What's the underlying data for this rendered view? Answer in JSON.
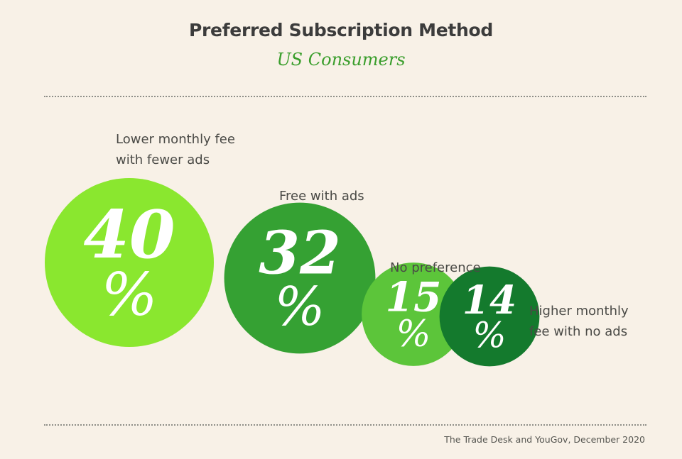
{
  "chart_data": {
    "type": "bubble",
    "title": "Preferred Subscription Method",
    "subtitle": "US Consumers",
    "unit": "%",
    "series": [
      {
        "label": "Lower monthly fee\nwith fewer ads",
        "value": 40,
        "color": "#8ae72f"
      },
      {
        "label": "Free with ads",
        "value": 32,
        "color": "#35a133"
      },
      {
        "label": "No preference",
        "value": 15,
        "color": "#5cc53a"
      },
      {
        "label": "Higher monthly\nfee with no ads",
        "value": 14,
        "color": "#147a2d"
      }
    ]
  },
  "source": "The Trade Desk and YouGov, December 2020"
}
